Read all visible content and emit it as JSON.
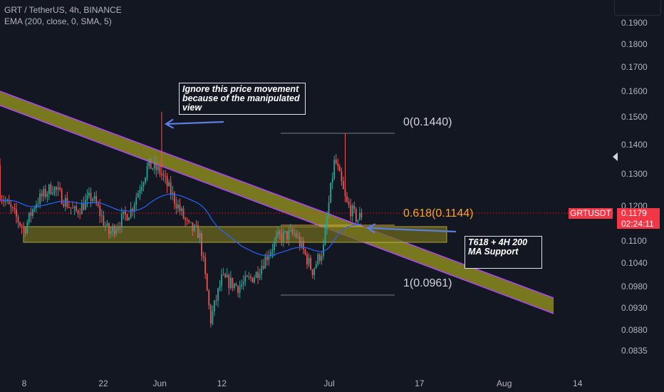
{
  "header": {
    "symbol_line": "GRT / TetherUS, 4h, BINANCE",
    "indicator_line": "EMA (200, close, 0, SMA, 5)"
  },
  "colors": {
    "background": "#131722",
    "up": "#26a69a",
    "down": "#ef5350",
    "ema": "#2962ff",
    "channel_fill": "#8b8b1d",
    "channel_edge": "#b044ff",
    "zone_fill": "#6e6a1e",
    "arrow": "#5b7ee0",
    "fib_orange": "#f7a531",
    "price_tag": "#f23645"
  },
  "chart_data": {
    "type": "candlestick",
    "title": "GRT / TetherUS, 4h, BINANCE",
    "indicator": "EMA (200, close, 0, SMA, 5)",
    "y_axis_ticks": [
      "0.1900",
      "0.1800",
      "0.1700",
      "0.1600",
      "0.1500",
      "0.1400",
      "0.1300",
      "0.1200",
      "0.1100",
      "0.1040",
      "0.0980",
      "0.0930",
      "0.0880",
      "0.0835"
    ],
    "x_axis_ticks": [
      "8",
      "22",
      "Jun",
      "12",
      "Jul",
      "17",
      "Aug",
      "14"
    ],
    "scale": "log",
    "last_price": "0.1179",
    "symbol_tag": "GRTUSDT",
    "countdown": "02:24:11",
    "fib_levels": [
      {
        "label": "0(0.1440)",
        "value": 0.144
      },
      {
        "label": "0.618(0.1144)",
        "value": 0.1144
      },
      {
        "label": "1(0.0961)",
        "value": 0.0961
      }
    ],
    "approx_path_closes": [
      [
        "May 1",
        0.133
      ],
      [
        "May 4",
        0.123
      ],
      [
        "May 8",
        0.113
      ],
      [
        "May 10",
        0.121
      ],
      [
        "May 13",
        0.126
      ],
      [
        "May 17",
        0.118
      ],
      [
        "May 20",
        0.123
      ],
      [
        "May 23",
        0.112
      ],
      [
        "May 27",
        0.119
      ],
      [
        "May 30",
        0.133
      ],
      [
        "Jun 1",
        0.131
      ],
      [
        "Jun 3",
        0.124
      ],
      [
        "Jun 6",
        0.114
      ],
      [
        "Jun 8",
        0.112
      ],
      [
        "Jun 10",
        0.09
      ],
      [
        "Jun 12",
        0.1
      ],
      [
        "Jun 15",
        0.098
      ],
      [
        "Jun 18",
        0.101
      ],
      [
        "Jun 22",
        0.111
      ],
      [
        "Jun 25",
        0.112
      ],
      [
        "Jun 28",
        0.102
      ],
      [
        "Jun 30",
        0.108
      ],
      [
        "Jul 2",
        0.135
      ],
      [
        "Jul 4",
        0.121
      ],
      [
        "Jul 6",
        0.116
      ],
      [
        "Jul 7",
        0.118
      ]
    ],
    "notable_wicks": [
      {
        "label": "spike high",
        "value": 0.152
      },
      {
        "label": "swing low",
        "value": 0.0885
      },
      {
        "label": "swing high",
        "value": 0.144
      }
    ],
    "annotations": {
      "note_top": "Ignore this price movement because of the manipulated view",
      "note_bottom": "T618 + 4H 200 MA Support"
    }
  }
}
